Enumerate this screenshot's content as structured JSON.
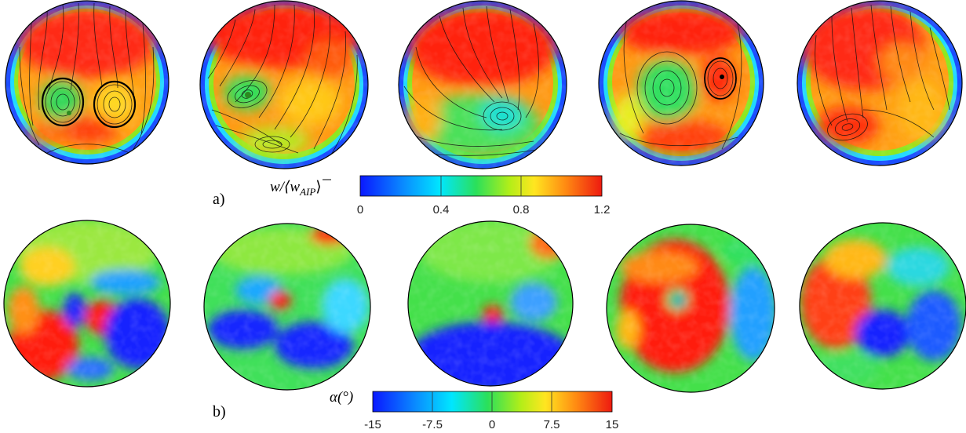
{
  "panels": [
    {
      "label": "a)",
      "colorbar": {
        "title": "w/⟨w̄AIP⟩",
        "title_main": "w/⟨",
        "title_bar_var": "w",
        "title_sub": "AIP",
        "title_close": "⟩",
        "min": 0,
        "max": 1.2,
        "ticks": [
          0,
          0.4,
          0.8,
          1.2
        ],
        "tick_labels": [
          "0",
          "0.4",
          "0.8",
          "1.2"
        ],
        "colormap": "jet"
      },
      "plots": 5,
      "overlay": "streamlines"
    },
    {
      "label": "b)",
      "colorbar": {
        "title": "α(°)",
        "min": -15,
        "max": 15,
        "ticks": [
          -15,
          -7.5,
          0,
          7.5,
          15
        ],
        "tick_labels": [
          "-15",
          "-7.5",
          "0",
          "7.5",
          "15"
        ],
        "colormap": "jet"
      },
      "plots": 5,
      "overlay": "none"
    }
  ],
  "colors": {
    "jet_stops": [
      "#00008f",
      "#0000ff",
      "#00ffff",
      "#00ff00",
      "#ffff00",
      "#ff0000",
      "#800000"
    ],
    "outline": "#000000"
  }
}
